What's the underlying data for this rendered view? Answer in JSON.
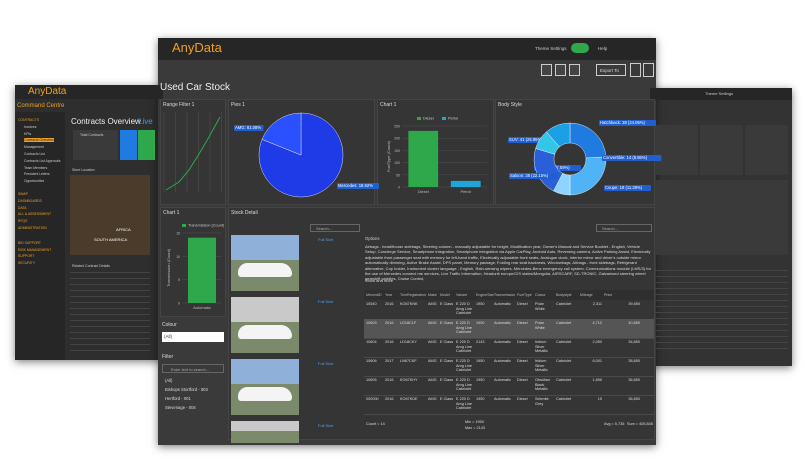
{
  "left_screen": {
    "brand": "AnyData",
    "title": "Command Centre",
    "page_title": "Contracts Overview",
    "live": "Live",
    "total_label": "Total Contracts",
    "map_label": "Store Location",
    "map_text": [
      "SOUTH AMERICA",
      "AFRICA"
    ],
    "menu": [
      "CONTRACTS",
      "Invoices",
      "KPIs",
      "Contracts Overview",
      "Management",
      "Contracts List",
      "Contracts List Approvals",
      "Team Members",
      "President Letters",
      "Opportunities",
      "SWAP",
      "DASHBOARDS",
      "DATA",
      "ALL & ASSESSMENT",
      "RFQS",
      "ADMINISTRATION",
      "BID SUPPORT",
      "RISK MANAGEMENT",
      "SUPPORT",
      "SECURITY"
    ],
    "table_title": "Related Contract Details"
  },
  "right_screen": {
    "theme": "Theme Settings"
  },
  "center": {
    "brand": "AnyData",
    "theme_settings": "Theme Settings",
    "help": "Help",
    "page_title": "Used Car Stock",
    "export": "Export To",
    "range_title": "Range Filter 1",
    "pies_title": "Pies 1",
    "fuel_title": "Chart 1",
    "body_title": "Body Style",
    "trans_title": "Chart 1",
    "stock_title": "Stock Detail",
    "search": "Search...",
    "colour_label": "Colour",
    "colour_value": "(All)",
    "filter_label": "Filter",
    "filter_placeholder": "Enter text to search...",
    "filter_items": [
      "(All)",
      "Bishops Stortford - 003",
      "Hertford - 001",
      "Stevenage - 004"
    ],
    "full_size": "Full Size",
    "options_label": "Options",
    "options_text": "Airbags - head/thorax sidebags, Steering column - manually adjustable for height, Modification year, Owner's Manual and Service Booklet - English, Vehicle Setup, Concierge Service, Smartphone integration, Smartphone integration via Apple CarPlay, Android Auto, Reversing camera, Active Parking Assist, Electrically adjustable front passenger seat with memory for left-hand traffic, Electrically adjustable front seats, Analogue clock, Interior mirror and driver's outside mirror automatically dimming, Active Brake Assist, DPS panel, Memory package, Folding rear seat backrests, Windowbags, Airbags - front sidebags, Refrigerant alternative, Cup holder, Instrument cluster language - English, Rain-sensing wipers, Mercedes-Benz emergency call system, Communications module (LMS/3) for the use of Mercedes connect me services, Live Traffic Information, Headunit europe/CIS states/Mongolia, AIRSCARF, SD-TRONIC, Galvanised steering wheel gearshift paddles, Cruise Control,",
    "show_more": "Show and more",
    "pies": {
      "type": "pie",
      "values": [
        81.08,
        18.92
      ],
      "value_labels": [
        "AMG: 81.08%",
        "Mercedes: 18.92%"
      ],
      "colors": [
        "#1f3be8",
        "#2b50ff"
      ]
    },
    "fuel": {
      "type": "bar",
      "y_label": "FuelType (Count)",
      "categories": [
        "Diesel",
        "Petrol"
      ],
      "series": [
        {
          "name": "Diesel",
          "color": "#2ea84a",
          "values": [
            230,
            null
          ]
        },
        {
          "name": "Petrol",
          "color": "#1ca6d9",
          "values": [
            null,
            25
          ]
        }
      ],
      "ylim": [
        0,
        250
      ],
      "yticks": [
        0,
        50,
        100,
        150,
        200,
        250
      ]
    },
    "body": {
      "type": "donut",
      "values": [
        38,
        41,
        12,
        35,
        14,
        18
      ],
      "value_labels": [
        "Hatchback: 38 (24.05%)",
        "SUV: 41 (25.95%)",
        "Estate: 12 (7.59%)",
        "Saloon: 35 (22.15%)",
        "Convertible: 14 (8.86%)",
        "Coupe: 18 (11.39%)"
      ],
      "colors": [
        "#1f7be0",
        "#4fb3f5",
        "#8fd4ff",
        "#2b5fd9",
        "#33c6e8",
        "#1ba0e6"
      ]
    },
    "trans": {
      "type": "bar",
      "y_label": "Transmission (Count)",
      "legend": "Transmission (Count)",
      "color": "#2ea84a",
      "categories": [
        "Automatic"
      ],
      "values": [
        14
      ],
      "ylim": [
        0,
        15
      ],
      "yticks": [
        0,
        5,
        10,
        15
      ]
    },
    "table": {
      "columns": [
        "MercedID",
        "Year",
        "TrimRegistration",
        "Make",
        "Model",
        "Variant",
        "EngineSize",
        "Transmission",
        "FuelType",
        "Colour",
        "Bodystyle",
        "Mileage",
        "Price"
      ],
      "rows": [
        [
          "10540",
          "2016",
          "KO67KNK",
          "AMG",
          "E Class",
          "E 220 D Amg Line Cabriolet",
          "1950",
          "Automatic",
          "Diesel",
          "Polar White",
          "Cabriolet",
          "2,311",
          "39,850"
        ],
        [
          "10603",
          "2016",
          "LD18CLF",
          "AMG",
          "E Class",
          "E 220 D Amg Line Cabriolet",
          "1950",
          "Automatic",
          "Diesel",
          "Polar White",
          "Cabriolet",
          "4,712",
          "40,850"
        ],
        [
          "10604",
          "2016",
          "LD18CKY",
          "AMG",
          "E Class",
          "E 220 D Amg Line Cabriolet",
          "2143",
          "Automatic",
          "Diesel",
          "Iridium Silver Metallic",
          "Cabriolet",
          "2,050",
          "34,850"
        ],
        [
          "10606",
          "2017",
          "LN67CKF",
          "AMG",
          "E Class",
          "E 220 D Amg Line Cabriolet",
          "1950",
          "Automatic",
          "Diesel",
          "Iridium Silver Metallic",
          "Cabriolet",
          "6,001",
          "38,850"
        ],
        [
          "10605",
          "2016",
          "KO67KHY",
          "AMG",
          "E Class",
          "E 220 D Amg Line Cabriolet",
          "1950",
          "Automatic",
          "Diesel",
          "Obsidian Black Metallic",
          "Cabriolet",
          "1,856",
          "36,850"
        ],
        [
          "000000",
          "2016",
          "KO67KDE",
          "AMG",
          "E Class",
          "E 220 D Amg Line Cabriolet",
          "1950",
          "Automatic",
          "Diesel",
          "Selenite Grey",
          "Cabriolet",
          "15",
          "36,850"
        ]
      ],
      "footer": [
        "Count = 14",
        "Min = 1950",
        "Max = 2143",
        "Avg = 5,735",
        "Sum = 405,845"
      ]
    }
  }
}
